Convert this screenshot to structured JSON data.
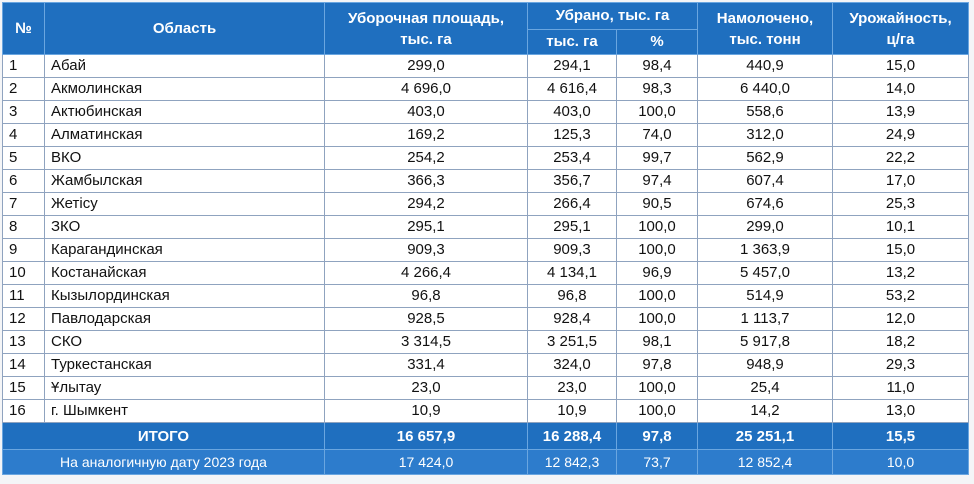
{
  "header": {
    "num": "№",
    "region": "Область",
    "harvest_area": [
      "Уборочная площадь,",
      "тыс. га"
    ],
    "harvested": "Убрано, тыс. га",
    "harvested_ha": "тыс. га",
    "harvested_pct": "%",
    "threshed": [
      "Намолочено,",
      "тыс. тонн"
    ],
    "yield": [
      "Урожайность,",
      "ц/га"
    ]
  },
  "rows": [
    [
      "1",
      "Абай",
      "299,0",
      "294,1",
      "98,4",
      "440,9",
      "15,0"
    ],
    [
      "2",
      "Акмолинская",
      "4 696,0",
      "4 616,4",
      "98,3",
      "6 440,0",
      "14,0"
    ],
    [
      "3",
      "Актюбинская",
      "403,0",
      "403,0",
      "100,0",
      "558,6",
      "13,9"
    ],
    [
      "4",
      "Алматинская",
      "169,2",
      "125,3",
      "74,0",
      "312,0",
      "24,9"
    ],
    [
      "5",
      "ВКО",
      "254,2",
      "253,4",
      "99,7",
      "562,9",
      "22,2"
    ],
    [
      "6",
      "Жамбылская",
      "366,3",
      "356,7",
      "97,4",
      "607,4",
      "17,0"
    ],
    [
      "7",
      "Жетісу",
      "294,2",
      "266,4",
      "90,5",
      "674,6",
      "25,3"
    ],
    [
      "8",
      "ЗКО",
      "295,1",
      "295,1",
      "100,0",
      "299,0",
      "10,1"
    ],
    [
      "9",
      "Карагандинская",
      "909,3",
      "909,3",
      "100,0",
      "1 363,9",
      "15,0"
    ],
    [
      "10",
      "Костанайская",
      "4 266,4",
      "4 134,1",
      "96,9",
      "5 457,0",
      "13,2"
    ],
    [
      "11",
      "Кызылординская",
      "96,8",
      "96,8",
      "100,0",
      "514,9",
      "53,2"
    ],
    [
      "12",
      "Павлодарская",
      "928,5",
      "928,4",
      "100,0",
      "1 113,7",
      "12,0"
    ],
    [
      "13",
      "СКО",
      "3 314,5",
      "3 251,5",
      "98,1",
      "5 917,8",
      "18,2"
    ],
    [
      "14",
      "Туркестанская",
      "331,4",
      "324,0",
      "97,8",
      "948,9",
      "29,3"
    ],
    [
      "15",
      "Ұлытау",
      "23,0",
      "23,0",
      "100,0",
      "25,4",
      "11,0"
    ],
    [
      "16",
      "г. Шымкент",
      "10,9",
      "10,9",
      "100,0",
      "14,2",
      "13,0"
    ]
  ],
  "total": [
    "ИТОГО",
    "16 657,9",
    "16 288,4",
    "97,8",
    "25 251,1",
    "15,5"
  ],
  "previous": [
    "На аналогичную дату 2023 года",
    "17 424,0",
    "12 842,3",
    "73,7",
    "12 852,4",
    "10,0"
  ]
}
